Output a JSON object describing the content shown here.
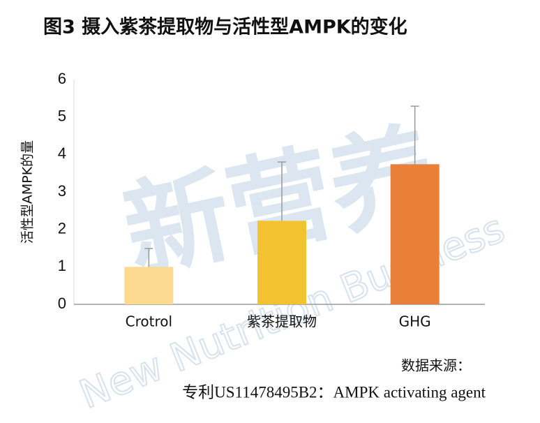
{
  "chart_data": {
    "type": "bar",
    "title": "图3 摄入紫茶提取物与活性型AMPK的变化",
    "y_label": "活性型AMPK的量",
    "categories": [
      "Crotrol",
      "紫茶提取物",
      "GHG"
    ],
    "values": [
      1.0,
      2.23,
      3.74
    ],
    "errors": [
      0.49,
      1.57,
      1.55
    ],
    "colors": [
      "#fbd98f",
      "#f2c230",
      "#e8803a"
    ],
    "error_color": "#999999",
    "ylim": [
      0,
      6
    ],
    "yticks": [
      0,
      1,
      2,
      3,
      4,
      5,
      6
    ],
    "grid": false,
    "source_label": "数据来源：",
    "source": "专利US11478495B2：AMPK activating agent",
    "watermark": [
      "新营养",
      "New Nutrition Business"
    ]
  }
}
